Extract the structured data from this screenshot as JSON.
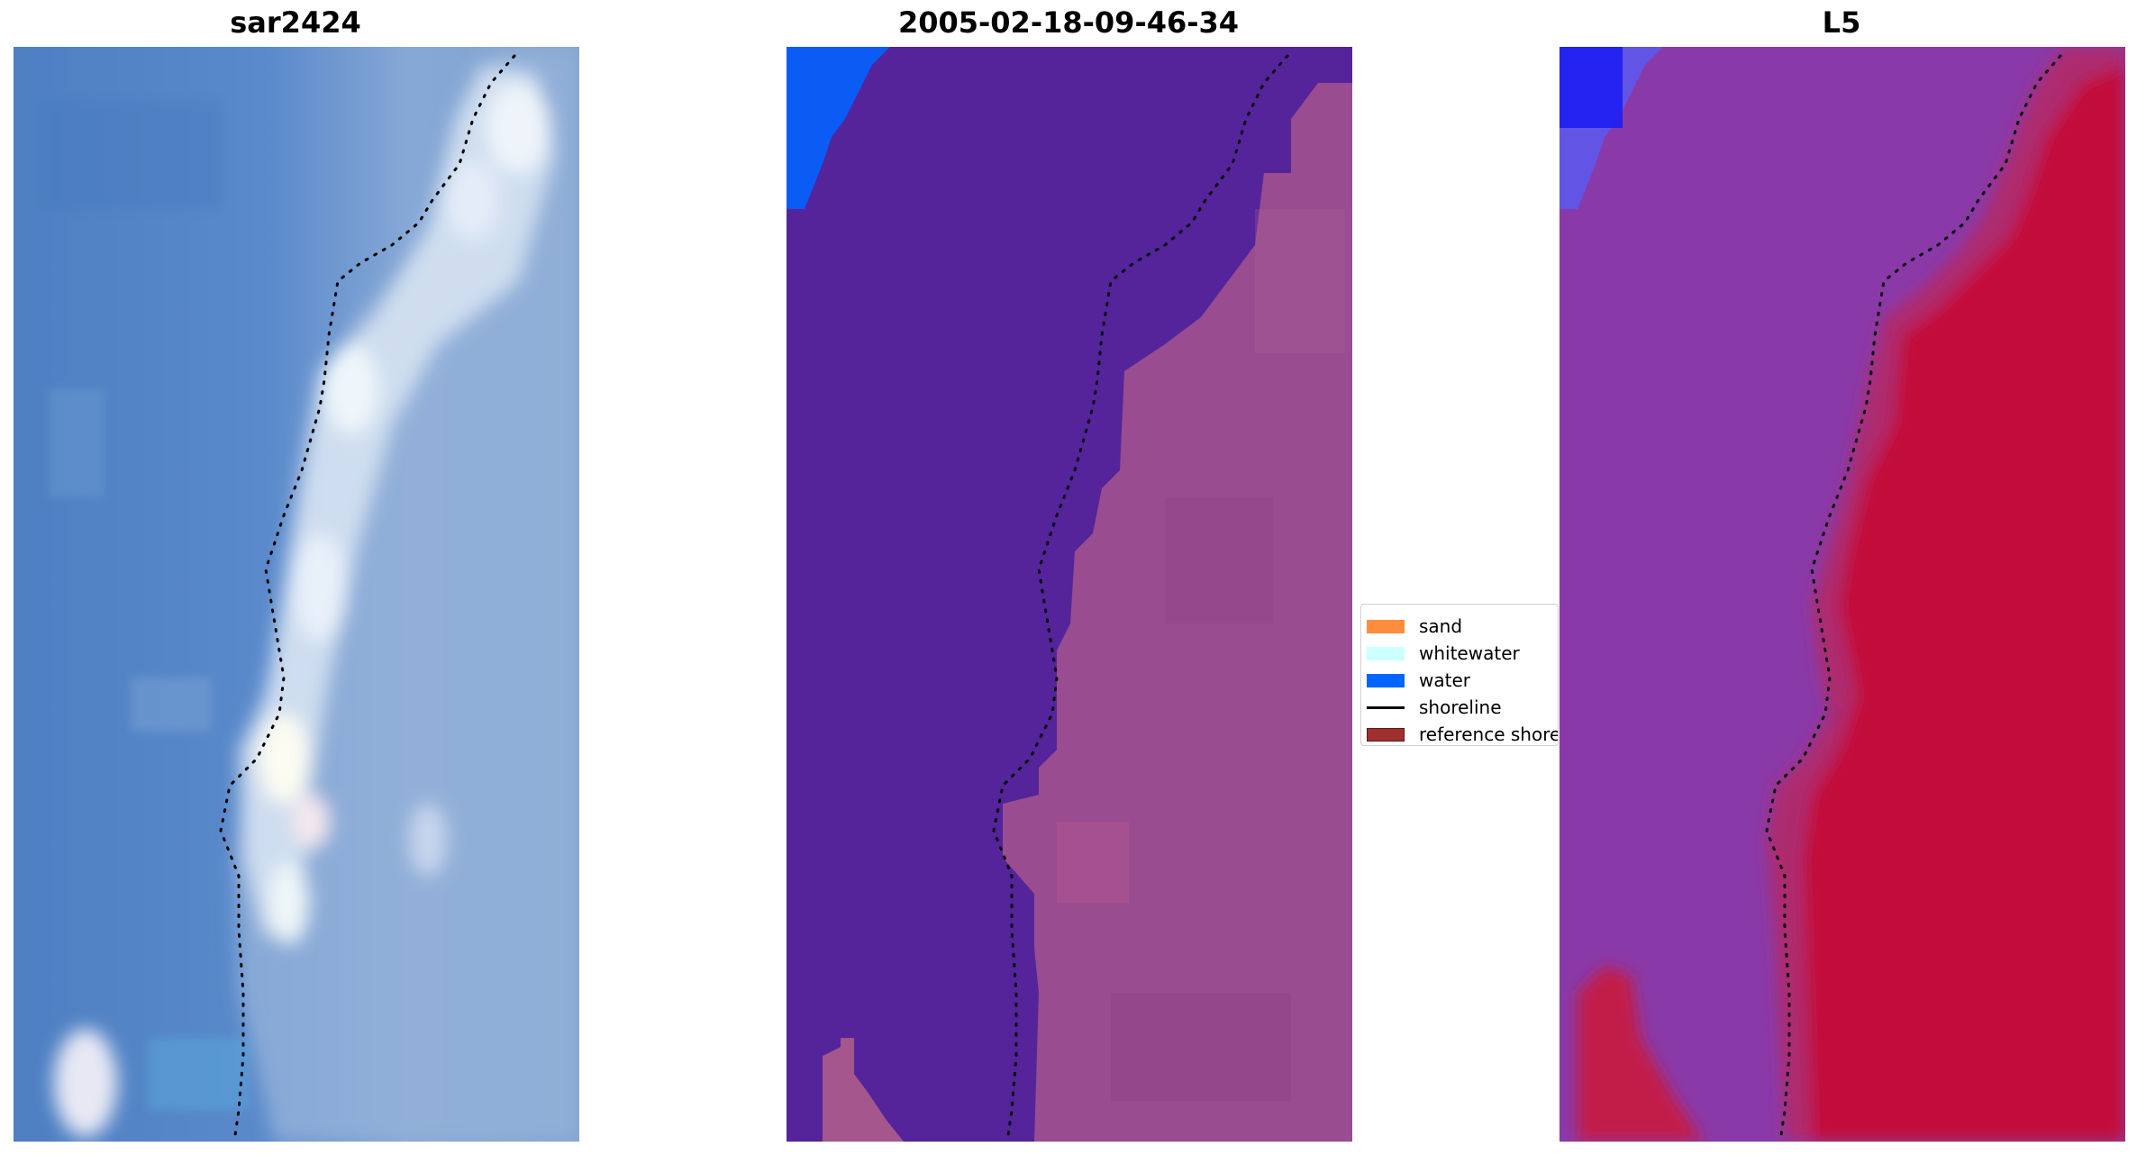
{
  "panels": [
    {
      "title": "sar2424"
    },
    {
      "title": "2005-02-18-09-46-34"
    },
    {
      "title": "L5"
    }
  ],
  "legend": {
    "items": [
      {
        "label": "sand",
        "color": "#FF8C3C",
        "type": "patch"
      },
      {
        "label": "whitewater",
        "color": "#CCFFFF",
        "type": "patch"
      },
      {
        "label": "water",
        "color": "#0064FF",
        "type": "patch"
      },
      {
        "label": "shoreline",
        "color": "#000000",
        "type": "line"
      },
      {
        "label": "reference shoreline",
        "color": "#A03030",
        "type": "patch"
      }
    ]
  },
  "colors": {
    "water_blue": "#4E83C4",
    "surf_white": "#E8F0F8",
    "classified_water_purple": "#55249A",
    "classified_land_mauve": "#9A4C90",
    "index_purple": "#8A3AA8",
    "index_red": "#C00C3A",
    "shoreline": "#000000"
  }
}
